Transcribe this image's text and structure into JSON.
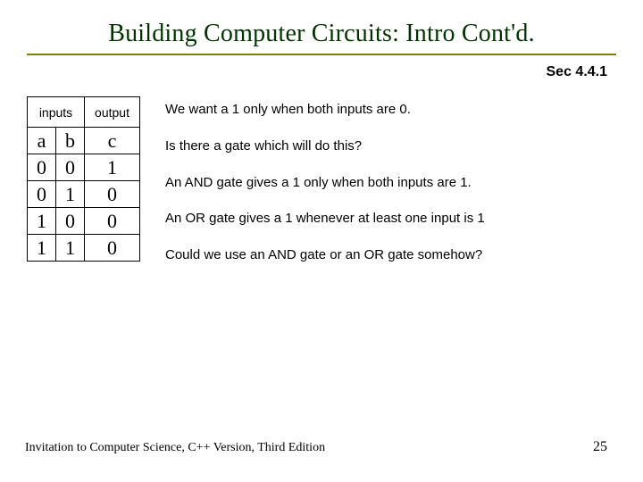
{
  "title": "Building Computer Circuits: Intro Cont'd.",
  "section_ref": "Sec 4.4.1",
  "table": {
    "header_inputs": "inputs",
    "header_output": "output",
    "col_a": "a",
    "col_b": "b",
    "col_c": "c",
    "rows": [
      {
        "a": "0",
        "b": "0",
        "c": "1"
      },
      {
        "a": "0",
        "b": "1",
        "c": "0"
      },
      {
        "a": "1",
        "b": "0",
        "c": "0"
      },
      {
        "a": "1",
        "b": "1",
        "c": "0"
      }
    ]
  },
  "text": {
    "p1": "We want a 1 only when both inputs are 0.",
    "p2": "Is there a gate which will do this?",
    "p3": "An AND gate gives a 1 only when both inputs are 1.",
    "p4": "An OR gate gives a 1 whenever at least one input is 1",
    "p5": "Could we use an AND gate or an OR gate somehow?"
  },
  "footer": {
    "left": "Invitation to Computer Science, C++ Version, Third Edition",
    "page": "25"
  },
  "colors": {
    "title_color": "#003300",
    "underline_color": "#808000",
    "text_color": "#000000",
    "background": "#ffffff"
  }
}
